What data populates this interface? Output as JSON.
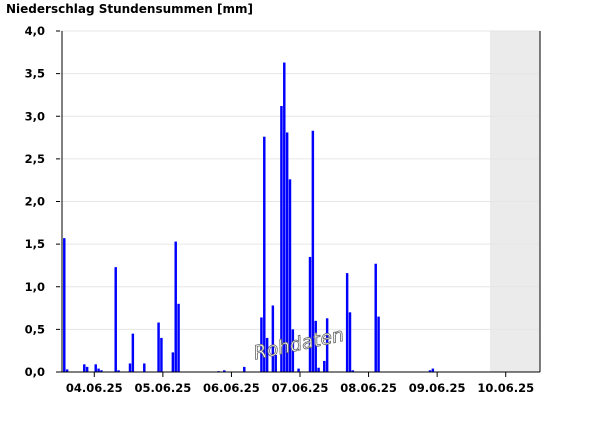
{
  "chart_data": {
    "type": "bar",
    "title": "Niederschlag Stundensummen [mm]",
    "annotation": "Rohdaten",
    "color": "#0000ff",
    "x": [
      1,
      2,
      8,
      9,
      12,
      13,
      14,
      19,
      20,
      24,
      25,
      29,
      34,
      35,
      39,
      40,
      41,
      55,
      57,
      64,
      70,
      71,
      72,
      74,
      75,
      77,
      78,
      79,
      80,
      81,
      83,
      87,
      88,
      89,
      90,
      92,
      93,
      100,
      101,
      102,
      110,
      111,
      129,
      130
    ],
    "values": [
      1.57,
      0.03,
      0.09,
      0.06,
      0.09,
      0.04,
      0.02,
      1.23,
      0.02,
      0.1,
      0.45,
      0.1,
      0.58,
      0.4,
      0.23,
      1.53,
      0.8,
      0.01,
      0.02,
      0.06,
      0.64,
      2.76,
      0.4,
      0.78,
      0.2,
      3.12,
      3.63,
      2.81,
      2.26,
      0.5,
      0.04,
      1.35,
      2.83,
      0.6,
      0.05,
      0.13,
      0.63,
      1.16,
      0.7,
      0.02,
      1.27,
      0.65,
      0.02,
      0.04
    ],
    "xlim": [
      0,
      168
    ],
    "xticks": [
      {
        "value": 12,
        "label": "04.06.25"
      },
      {
        "value": 36,
        "label": "05.06.25"
      },
      {
        "value": 60,
        "label": "06.06.25"
      },
      {
        "value": 84,
        "label": "07.06.25"
      },
      {
        "value": 108,
        "label": "08.06.25"
      },
      {
        "value": 132,
        "label": "09.06.25"
      },
      {
        "value": 156,
        "label": "10.06.25"
      }
    ],
    "ylim": [
      0,
      4
    ],
    "yticks": [
      {
        "value": 0,
        "label": "0,0"
      },
      {
        "value": 0.5,
        "label": "0,5"
      },
      {
        "value": 1,
        "label": "1,0"
      },
      {
        "value": 1.5,
        "label": "1,5"
      },
      {
        "value": 2,
        "label": "2,0"
      },
      {
        "value": 2.5,
        "label": "2,5"
      },
      {
        "value": 3,
        "label": "3,0"
      },
      {
        "value": 3.5,
        "label": "3,5"
      },
      {
        "value": 4,
        "label": "4,0"
      }
    ],
    "grid": true
  }
}
